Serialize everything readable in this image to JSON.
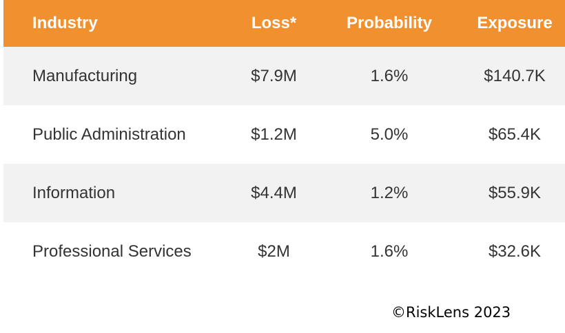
{
  "chart_data": {
    "type": "table",
    "columns": [
      "Industry",
      "Loss*",
      "Probability",
      "Exposure"
    ],
    "rows": [
      [
        "Manufacturing",
        "$7.9M",
        "1.6%",
        "$140.7K"
      ],
      [
        "Public Administration",
        "$1.2M",
        "5.0%",
        "$65.4K"
      ],
      [
        "Information",
        "$4.4M",
        "1.2%",
        "$55.9K"
      ],
      [
        "Professional Services",
        "$2M",
        "1.6%",
        "$32.6K"
      ]
    ],
    "header_color": "#f0902f",
    "row_shade_color": "#f2f2f2"
  },
  "copyright": "©RiskLens 2023"
}
